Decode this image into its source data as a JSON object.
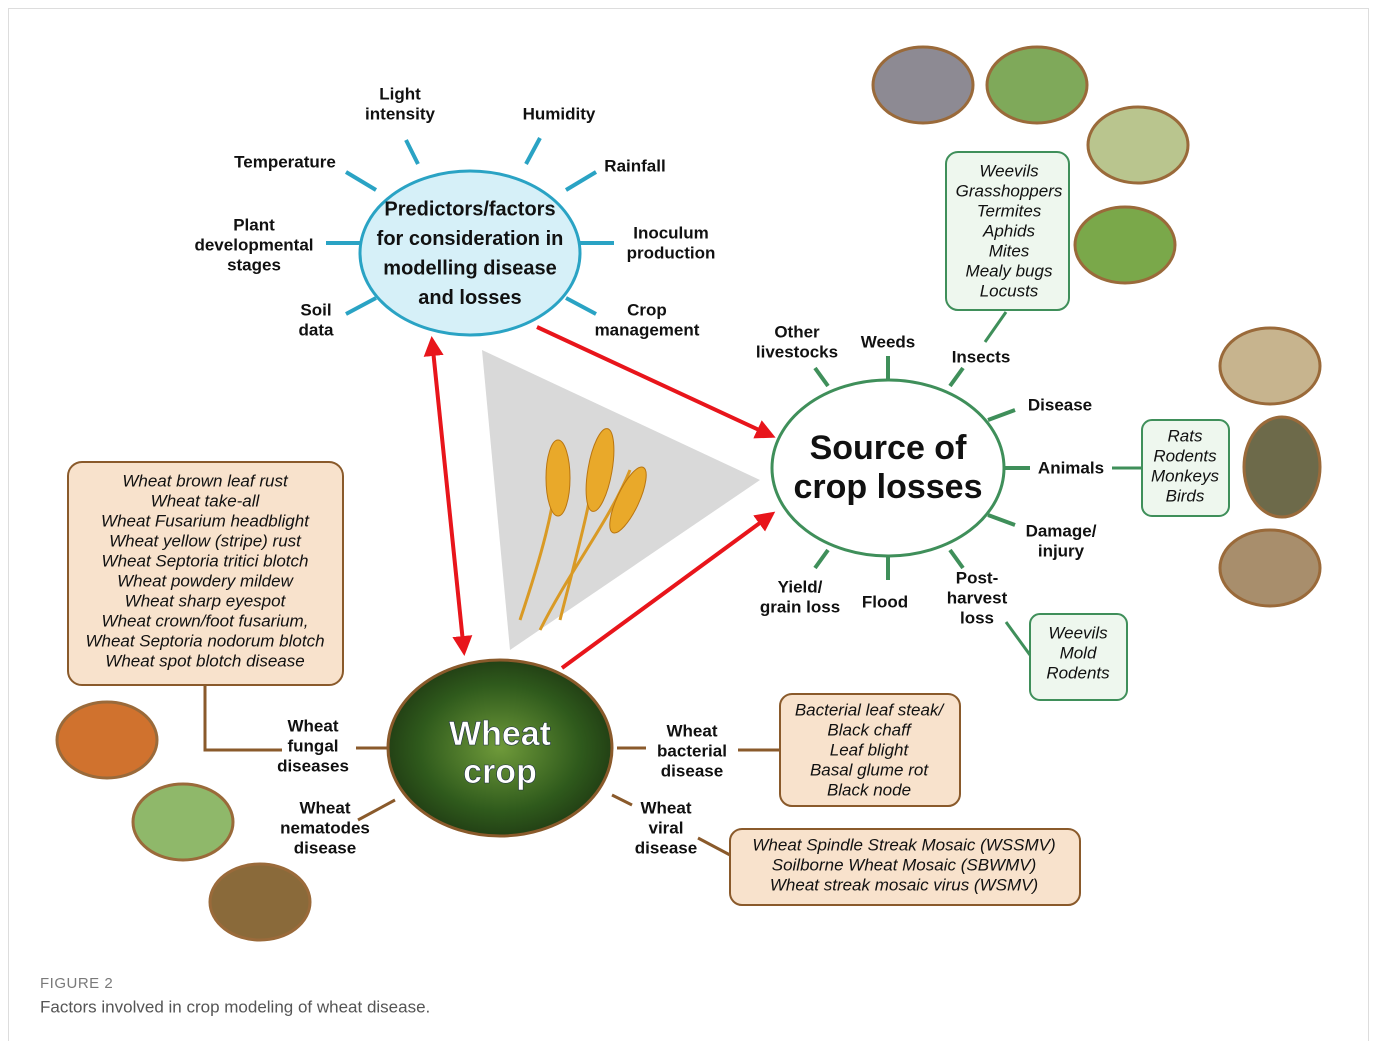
{
  "predictors": {
    "label": [
      "Predictors/factors",
      "for consideration in",
      "modelling disease",
      "and losses"
    ],
    "factors": [
      [
        "Light",
        "intensity"
      ],
      [
        "Humidity"
      ],
      [
        "Temperature"
      ],
      [
        "Rainfall"
      ],
      [
        "Plant",
        "developmental",
        "stages"
      ],
      [
        "Inoculum",
        "production"
      ],
      [
        "Soil",
        "data"
      ],
      [
        "Crop",
        "management"
      ]
    ]
  },
  "losses": {
    "label": [
      "Source of",
      "crop losses"
    ],
    "sources": [
      [
        "Other",
        "livestocks"
      ],
      [
        "Weeds"
      ],
      [
        "Insects"
      ],
      [
        "Disease"
      ],
      [
        "Animals"
      ],
      [
        "Damage/",
        "injury"
      ],
      [
        "Post-",
        "harvest",
        "loss"
      ],
      [
        "Flood"
      ],
      [
        "Yield/",
        "grain loss"
      ]
    ],
    "insects": [
      "Weevils",
      "Grasshoppers",
      "Termites",
      "Aphids",
      "Mites",
      "Mealy bugs",
      "Locusts"
    ],
    "animals": [
      "Rats",
      "Rodents",
      "Monkeys",
      "Birds"
    ],
    "post_harvest": [
      "Weevils",
      "Mold",
      "Rodents"
    ]
  },
  "wheat": {
    "label": [
      "Wheat",
      "crop"
    ],
    "branches": [
      [
        "Wheat",
        "fungal",
        "diseases"
      ],
      [
        "Wheat",
        "nematodes",
        "disease"
      ],
      [
        "Wheat",
        "bacterial",
        "disease"
      ],
      [
        "Wheat",
        "viral",
        "disease"
      ]
    ],
    "fungal_diseases": [
      "Wheat brown leaf rust",
      "Wheat take-all",
      "Wheat Fusarium headblight",
      "Wheat yellow (stripe) rust",
      "Wheat Septoria tritici blotch",
      "Wheat powdery mildew",
      "Wheat sharp eyespot",
      "Wheat crown/foot fusarium,",
      "Wheat Septoria nodorum blotch",
      "Wheat spot blotch disease"
    ],
    "bacterial_diseases": [
      "Bacterial leaf steak/",
      "Black chaff",
      "Leaf blight",
      "Basal glume rot",
      "Black node"
    ],
    "viral_diseases": [
      "Wheat Spindle Streak Mosaic (WSSMV)",
      "Soilborne Wheat Mosaic (SBWMV)",
      "Wheat streak mosaic virus (WSMV)"
    ]
  },
  "caption": {
    "label": "FIGURE 2",
    "text": "Factors involved in crop modeling of wheat disease."
  }
}
